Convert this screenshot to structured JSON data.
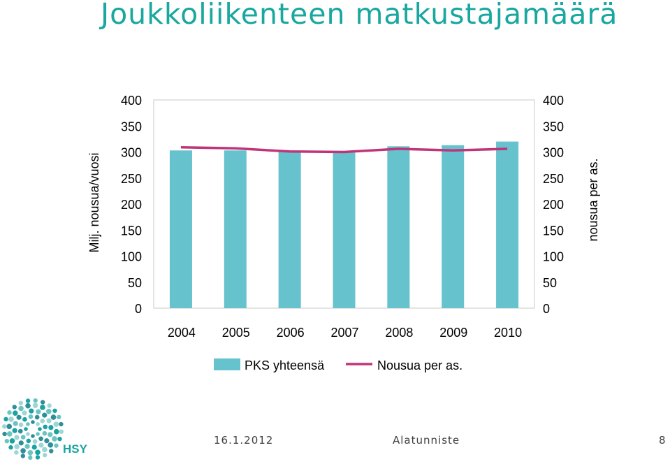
{
  "slide": {
    "title": "Joukkoliikenteen matkustajamäärä",
    "footer_date": "16.1.2012",
    "footer_text": "Alatunniste",
    "page_number": "8",
    "logo_text": "HSY"
  },
  "colors": {
    "title": "#19a7a0",
    "bar": "#66c2cc",
    "line": "#c0357a",
    "frame": "#c8c8c8"
  },
  "chart_data": {
    "type": "bar",
    "categories": [
      "2004",
      "2005",
      "2006",
      "2007",
      "2008",
      "2009",
      "2010"
    ],
    "series": [
      {
        "name": "PKS yhteensä",
        "type": "bar",
        "axis": "left",
        "values": [
          303,
          303,
          300,
          299,
          311,
          313,
          320
        ]
      },
      {
        "name": "Nousua per as.",
        "type": "line",
        "axis": "right",
        "values": [
          309,
          307,
          301,
          300,
          306,
          303,
          306
        ]
      }
    ],
    "ylabel": "Milj. nousua/vuosi",
    "y2label": "nousua per as.",
    "ylim": [
      0,
      400
    ],
    "y2lim": [
      0,
      400
    ],
    "yticks": [
      "0",
      "50",
      "100",
      "150",
      "200",
      "250",
      "300",
      "350",
      "400"
    ],
    "y2ticks": [
      "0",
      "50",
      "100",
      "150",
      "200",
      "250",
      "300",
      "350",
      "400"
    ],
    "grid": false,
    "legend": "bottom"
  }
}
